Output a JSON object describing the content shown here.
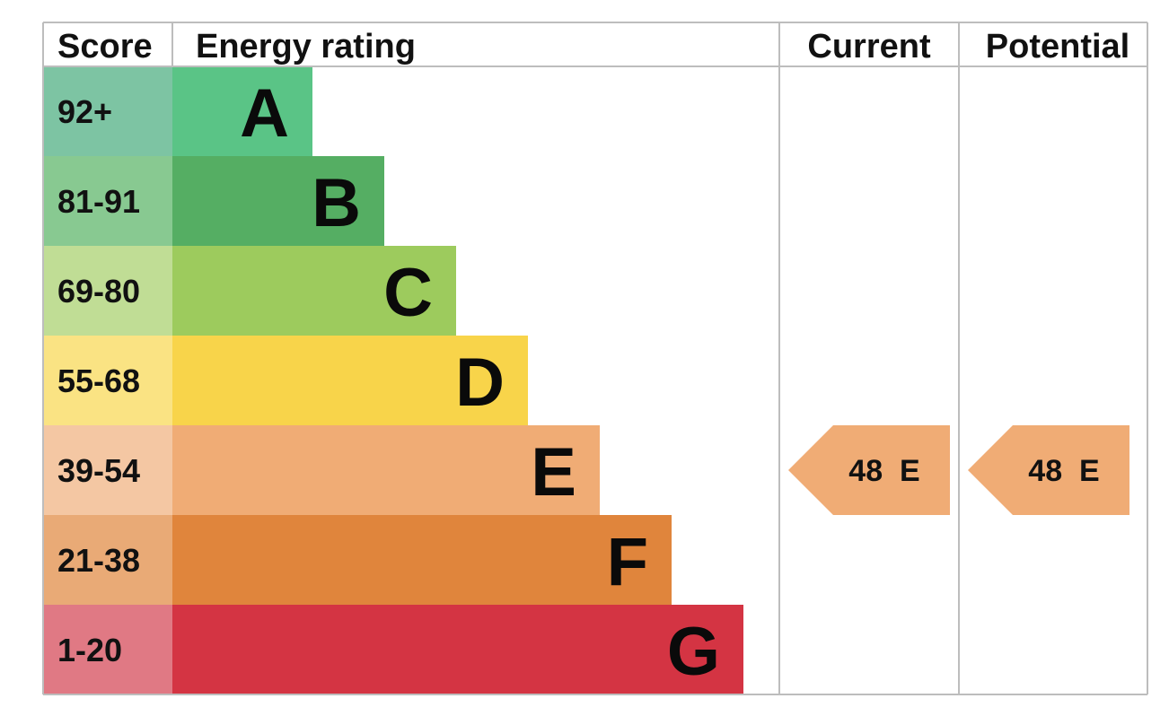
{
  "chart_data": {
    "type": "bar",
    "headers": {
      "score": "Score",
      "rating": "Energy rating",
      "current": "Current",
      "potential": "Potential"
    },
    "bands": [
      {
        "letter": "A",
        "range": "92+",
        "color": "#5ac486",
        "score_color": "#7dc4a3"
      },
      {
        "letter": "B",
        "range": "81-91",
        "color": "#55ae63",
        "score_color": "#88c991"
      },
      {
        "letter": "C",
        "range": "69-80",
        "color": "#9dcb5d",
        "score_color": "#c0dd95"
      },
      {
        "letter": "D",
        "range": "55-68",
        "color": "#f8d44a",
        "score_color": "#fae383"
      },
      {
        "letter": "E",
        "range": "39-54",
        "color": "#f0ac75",
        "score_color": "#f4c7a3"
      },
      {
        "letter": "F",
        "range": "21-38",
        "color": "#e0853c",
        "score_color": "#e9aa76"
      },
      {
        "letter": "G",
        "range": "1-20",
        "color": "#d43443",
        "score_color": "#e07984"
      }
    ],
    "current": {
      "score": 48,
      "band": "E",
      "label": "48  E",
      "color": "#f0ac75"
    },
    "potential": {
      "score": 48,
      "band": "E",
      "label": "48  E",
      "color": "#f0ac75"
    }
  }
}
